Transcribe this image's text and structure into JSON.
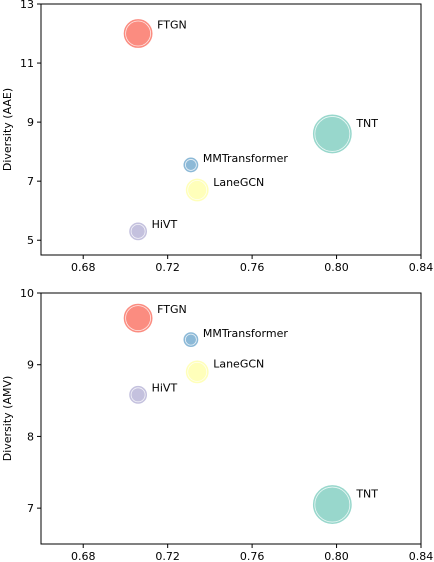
{
  "chart_data": [
    {
      "type": "scatter",
      "title": "",
      "xlabel": "",
      "ylabel": "Diversity (AAE)",
      "xlim": [
        0.66,
        0.84
      ],
      "ylim": [
        4.5,
        13
      ],
      "xticks": [
        "0.68",
        "0.72",
        "0.76",
        "0.80",
        "0.84"
      ],
      "xtick_values": [
        0.68,
        0.72,
        0.76,
        0.8,
        0.84
      ],
      "yticks": [
        "5",
        "7",
        "9",
        "11",
        "13"
      ],
      "ytick_values": [
        5,
        7,
        9,
        11,
        13
      ],
      "grid": false,
      "points": [
        {
          "label": "FTGN",
          "x": 0.706,
          "y": 12.0,
          "size": 4,
          "color": "#fb8072"
        },
        {
          "label": "TNT",
          "x": 0.798,
          "y": 8.6,
          "size": 5,
          "color": "#8dd3c7"
        },
        {
          "label": "MMTransformer",
          "x": 0.731,
          "y": 7.55,
          "size": 1.5,
          "color": "#80b1d3"
        },
        {
          "label": "LaneGCN",
          "x": 0.734,
          "y": 6.7,
          "size": 3,
          "color": "#ffffb3"
        },
        {
          "label": "HiVT",
          "x": 0.706,
          "y": 5.3,
          "size": 2,
          "color": "#bebada"
        }
      ]
    },
    {
      "type": "scatter",
      "title": "",
      "xlabel": "",
      "ylabel": "Diversity (AMV)",
      "xlim": [
        0.66,
        0.84
      ],
      "ylim": [
        6.5,
        10
      ],
      "xticks": [
        "0.68",
        "0.72",
        "0.76",
        "0.80",
        "0.84"
      ],
      "xtick_values": [
        0.68,
        0.72,
        0.76,
        0.8,
        0.84
      ],
      "yticks": [
        "7",
        "8",
        "9",
        "10"
      ],
      "ytick_values": [
        7,
        8,
        9,
        10
      ],
      "grid": false,
      "points": [
        {
          "label": "FTGN",
          "x": 0.706,
          "y": 9.65,
          "size": 4,
          "color": "#fb8072"
        },
        {
          "label": "MMTransformer",
          "x": 0.731,
          "y": 9.35,
          "size": 1.5,
          "color": "#80b1d3"
        },
        {
          "label": "LaneGCN",
          "x": 0.734,
          "y": 8.9,
          "size": 3,
          "color": "#ffffb3"
        },
        {
          "label": "HiVT",
          "x": 0.706,
          "y": 8.58,
          "size": 2,
          "color": "#bebada"
        },
        {
          "label": "TNT",
          "x": 0.798,
          "y": 7.05,
          "size": 5,
          "color": "#8dd3c7"
        }
      ]
    }
  ]
}
